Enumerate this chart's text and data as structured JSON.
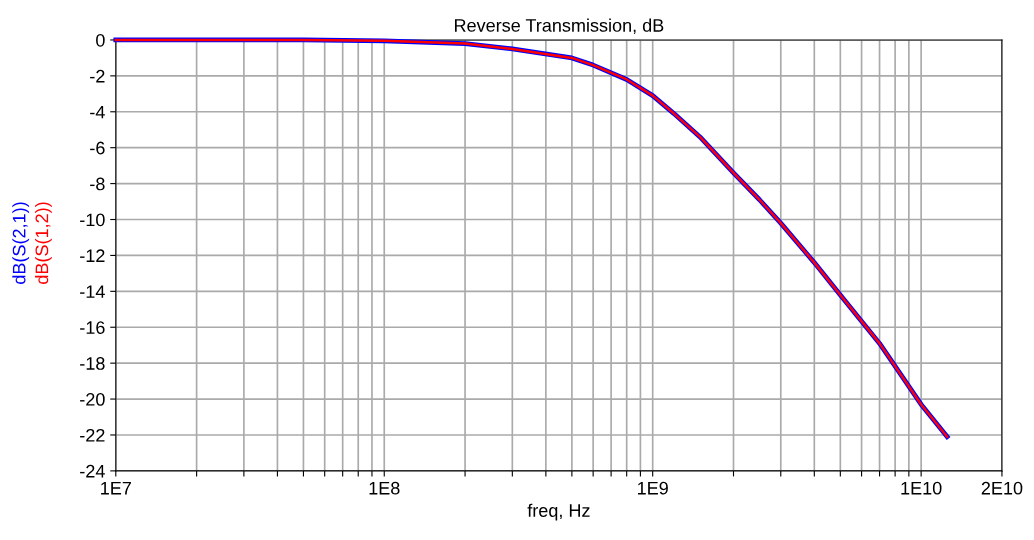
{
  "chart_data": {
    "type": "line",
    "title": "Reverse Transmission, dB",
    "xlabel": "freq, Hz",
    "x": [
      10000000.0,
      20000000.0,
      50000000.0,
      100000000.0,
      200000000.0,
      300000000.0,
      500000000.0,
      600000000.0,
      800000000.0,
      1000000000.0,
      1200000000.0,
      1500000000.0,
      2000000000.0,
      2500000000.0,
      3000000000.0,
      4000000000.0,
      5000000000.0,
      7000000000.0,
      10000000000.0,
      12500000000.0
    ],
    "series": [
      {
        "name": "dB(S(2,1))",
        "color": "#0000ff",
        "values": [
          0,
          0,
          0,
          -0.05,
          -0.2,
          -0.5,
          -1.0,
          -1.4,
          -2.2,
          -3.1,
          -4.1,
          -5.4,
          -7.4,
          -8.9,
          -10.2,
          -12.4,
          -14.2,
          -16.9,
          -20.3,
          -22.1
        ]
      },
      {
        "name": "dB(S(1,2))",
        "color": "#ff0000",
        "values": [
          0,
          0,
          0,
          -0.05,
          -0.2,
          -0.5,
          -1.0,
          -1.4,
          -2.2,
          -3.1,
          -4.1,
          -5.4,
          -7.4,
          -8.9,
          -10.2,
          -12.4,
          -14.2,
          -16.9,
          -20.3,
          -22.1
        ]
      }
    ],
    "log": "x",
    "xlim": [
      10000000.0,
      20000000000.0
    ],
    "ylim": [
      -24,
      0
    ],
    "xticks": [
      {
        "value": 10000000.0,
        "label": "1E7"
      },
      {
        "value": 20000000.0,
        "label": null
      },
      {
        "value": 30000000.0,
        "label": null
      },
      {
        "value": 40000000.0,
        "label": null
      },
      {
        "value": 50000000.0,
        "label": null
      },
      {
        "value": 60000000.0,
        "label": null
      },
      {
        "value": 70000000.0,
        "label": null
      },
      {
        "value": 80000000.0,
        "label": null
      },
      {
        "value": 90000000.0,
        "label": null
      },
      {
        "value": 100000000.0,
        "label": "1E8"
      },
      {
        "value": 200000000.0,
        "label": null
      },
      {
        "value": 300000000.0,
        "label": null
      },
      {
        "value": 400000000.0,
        "label": null
      },
      {
        "value": 500000000.0,
        "label": null
      },
      {
        "value": 600000000.0,
        "label": null
      },
      {
        "value": 700000000.0,
        "label": null
      },
      {
        "value": 800000000.0,
        "label": null
      },
      {
        "value": 900000000.0,
        "label": null
      },
      {
        "value": 1000000000.0,
        "label": "1E9"
      },
      {
        "value": 2000000000.0,
        "label": null
      },
      {
        "value": 3000000000.0,
        "label": null
      },
      {
        "value": 4000000000.0,
        "label": null
      },
      {
        "value": 5000000000.0,
        "label": null
      },
      {
        "value": 6000000000.0,
        "label": null
      },
      {
        "value": 7000000000.0,
        "label": null
      },
      {
        "value": 8000000000.0,
        "label": null
      },
      {
        "value": 9000000000.0,
        "label": null
      },
      {
        "value": 10000000000.0,
        "label": "1E10"
      },
      {
        "value": 20000000000.0,
        "label": "2E10"
      }
    ],
    "yticks": [
      -24,
      -22,
      -20,
      -18,
      -16,
      -14,
      -12,
      -10,
      -8,
      -6,
      -4,
      -2,
      0
    ],
    "grid": true,
    "legend": false,
    "marker": "none",
    "line_style": "solid"
  }
}
